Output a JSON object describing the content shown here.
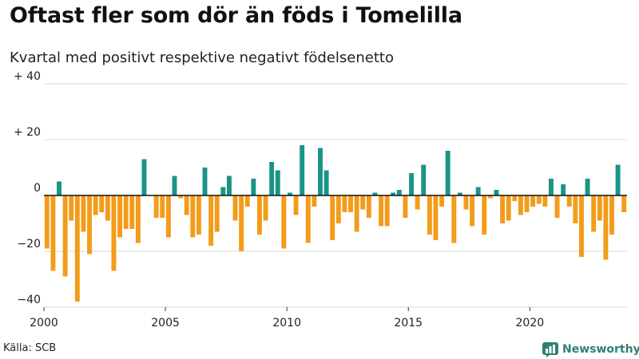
{
  "header": {
    "title": "Oftast fler som dör än föds i Tomelilla",
    "subtitle": "Kvartal med positivt respektive negativt födelsenetto"
  },
  "footer": {
    "source": "Källa: SCB",
    "brand": "Newsworthy"
  },
  "colors": {
    "positive": "#1a9486",
    "negative": "#f39c1a",
    "grid": "#d9d9d9",
    "brand": "#2f7f73"
  },
  "icons": {
    "brand": "bar-chart-logo-icon"
  },
  "chart_data": {
    "type": "bar",
    "title": "Oftast fler som dör än föds i Tomelilla",
    "subtitle": "Kvartal med positivt respektive negativt födelsenetto",
    "xlabel": "",
    "ylabel": "",
    "ylim": [
      -40,
      40
    ],
    "yticks": [
      -40,
      -20,
      0,
      20,
      40
    ],
    "ytick_labels": [
      "−40",
      "−20",
      "0",
      "+ 20",
      "+ 40"
    ],
    "xticks": [
      2000,
      2005,
      2010,
      2015,
      2020
    ],
    "xtick_labels": [
      "2000",
      "2005",
      "2010",
      "2015",
      "2020"
    ],
    "grid": true,
    "start_year": 2000,
    "start_quarter": 1,
    "values": [
      -19,
      -27,
      5,
      -29,
      -9,
      -38,
      -13,
      -21,
      -7,
      -6,
      -9,
      -27,
      -15,
      -12,
      -12,
      -17,
      13,
      0,
      -8,
      -8,
      -15,
      7,
      -1,
      -7,
      -15,
      -14,
      10,
      -18,
      -13,
      3,
      7,
      -9,
      -20,
      -4,
      6,
      -14,
      -9,
      12,
      9,
      -19,
      1,
      -7,
      18,
      -17,
      -4,
      17,
      9,
      -16,
      -10,
      -6,
      -6,
      -13,
      -5,
      -8,
      1,
      -11,
      -11,
      1,
      2,
      -8,
      8,
      -5,
      11,
      -14,
      -16,
      -4,
      16,
      -17,
      1,
      -5,
      -11,
      3,
      -14,
      -1,
      2,
      -10,
      -9,
      -2,
      -7,
      -6,
      -4,
      -3,
      -4,
      6,
      -8,
      4,
      -4,
      -10,
      -22,
      6,
      -13,
      -9,
      -23,
      -14,
      11,
      -6
    ]
  }
}
